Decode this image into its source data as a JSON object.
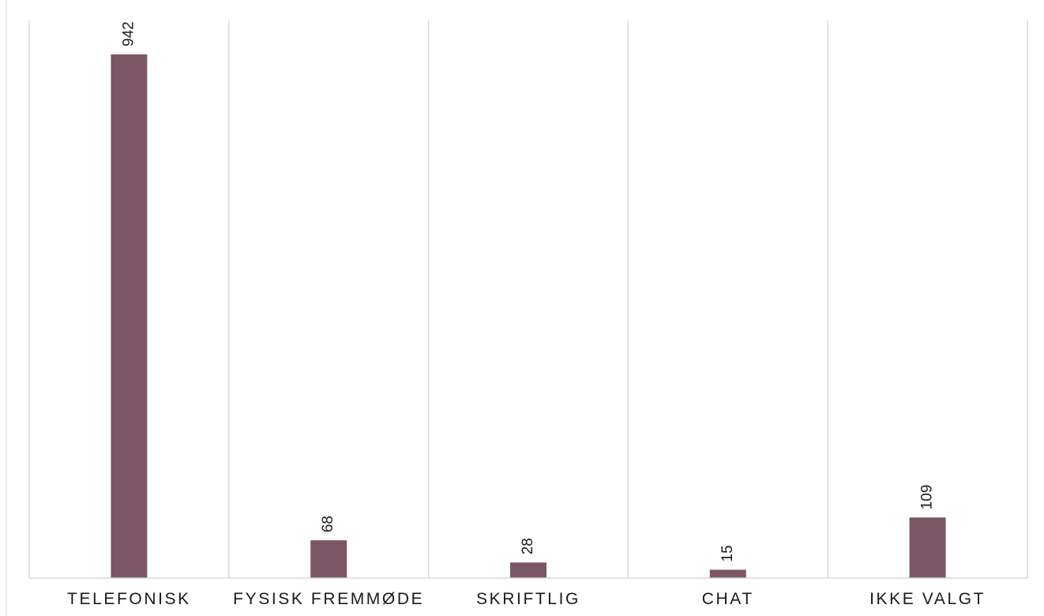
{
  "chart_data": {
    "type": "bar",
    "categories": [
      "TELEFONISK",
      "FYSISK FREMMØDE",
      "SKRIFTLIG",
      "CHAT",
      "IKKE VALGT"
    ],
    "values": [
      942,
      68,
      28,
      15,
      109
    ],
    "title": "",
    "xlabel": "",
    "ylabel": "",
    "ylim": [
      0,
      1000
    ],
    "grid": "vertical separators between categories",
    "legend": "none",
    "data_labels": "above bars, rotated vertically",
    "bar_color": "#7c5665",
    "grid_color": "#d9d9d9"
  }
}
